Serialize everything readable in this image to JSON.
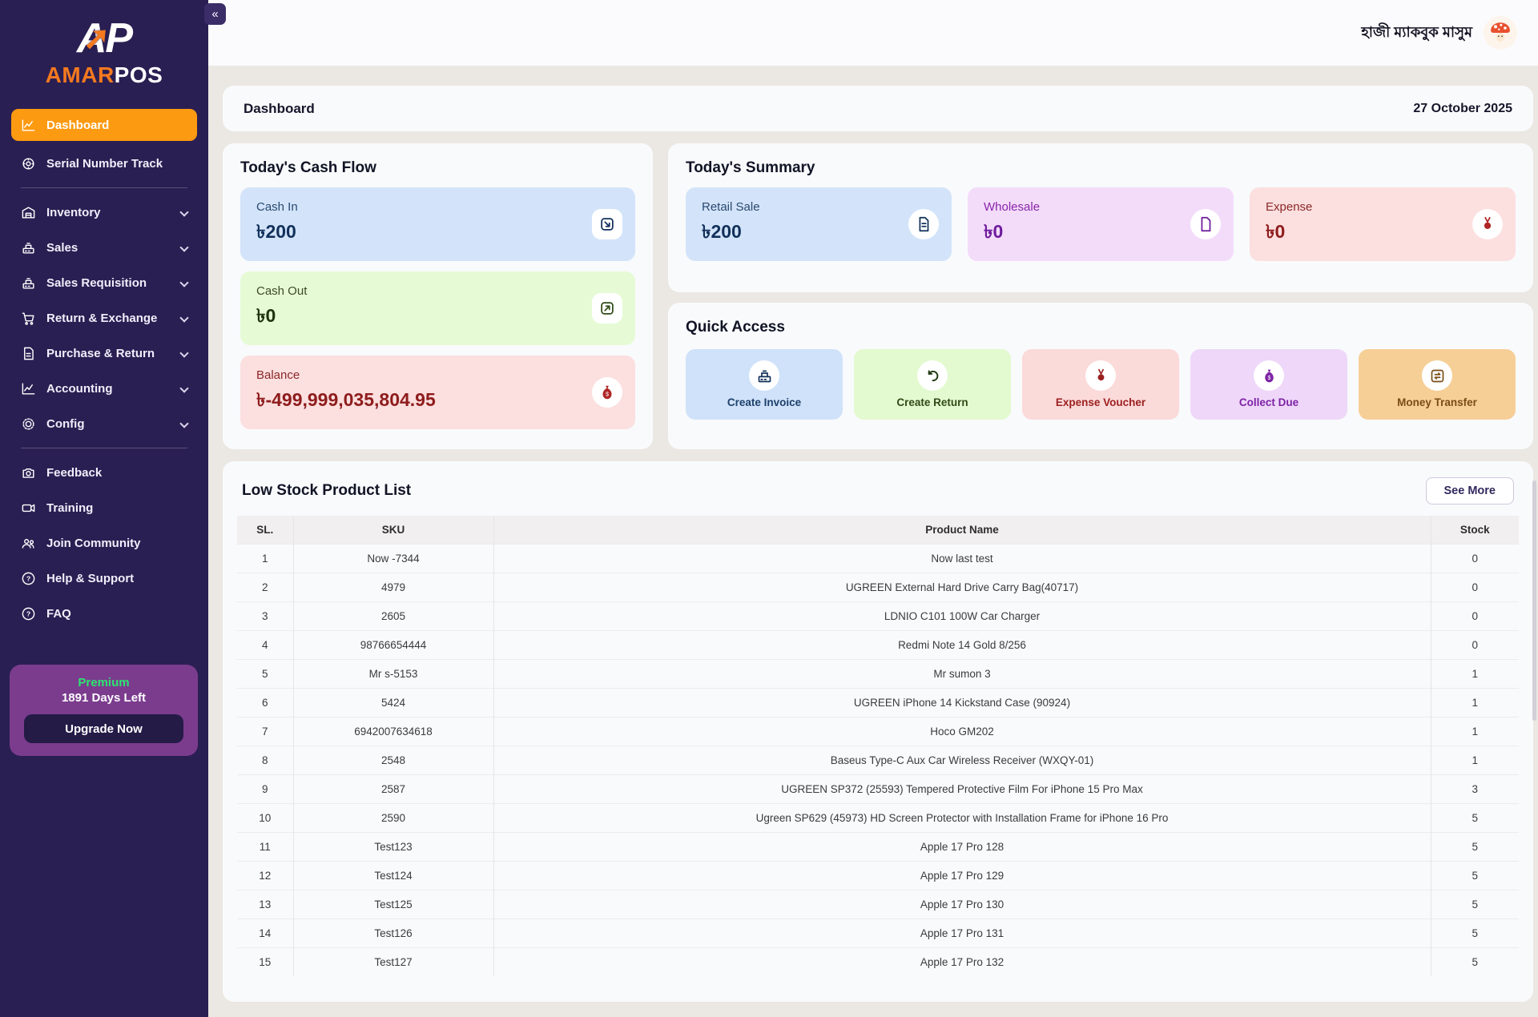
{
  "sidebar": {
    "logo": {
      "mark": "AP",
      "arrow_icon": "trend-arrow-icon",
      "brand_amar": "AMAR",
      "brand_pos": "POS"
    },
    "items": [
      {
        "label": "Dashboard",
        "icon": "chart-line-icon",
        "active": true,
        "expandable": false
      },
      {
        "label": "Serial Number Track",
        "icon": "serial-gear-icon",
        "active": false,
        "expandable": false
      },
      {
        "label": "Inventory",
        "icon": "warehouse-icon",
        "active": false,
        "expandable": true
      },
      {
        "label": "Sales",
        "icon": "cash-register-icon",
        "active": false,
        "expandable": true
      },
      {
        "label": "Sales Requisition",
        "icon": "cash-register-icon",
        "active": false,
        "expandable": true
      },
      {
        "label": "Return & Exchange",
        "icon": "cart-icon",
        "active": false,
        "expandable": true
      },
      {
        "label": "Purchase & Return",
        "icon": "file-return-icon",
        "active": false,
        "expandable": true
      },
      {
        "label": "Accounting",
        "icon": "chart-line-icon",
        "active": false,
        "expandable": true
      },
      {
        "label": "Config",
        "icon": "gear-icon",
        "active": false,
        "expandable": true
      },
      {
        "label": "Feedback",
        "icon": "camera-icon",
        "active": false,
        "expandable": false
      },
      {
        "label": "Training",
        "icon": "video-icon",
        "active": false,
        "expandable": false
      },
      {
        "label": "Join Community",
        "icon": "users-icon",
        "active": false,
        "expandable": false
      },
      {
        "label": "Help & Support",
        "icon": "question-circle-icon",
        "active": false,
        "expandable": false
      },
      {
        "label": "FAQ",
        "icon": "question-circle-icon",
        "active": false,
        "expandable": false
      }
    ],
    "premium": {
      "tier": "Premium",
      "days_left": "1891 Days Left",
      "cta": "Upgrade Now"
    }
  },
  "header": {
    "collapse_label": "«",
    "user_name": "হাজী ম্যাকবুক মাসুম",
    "avatar_icon": "mushroom-avatar"
  },
  "page": {
    "title": "Dashboard",
    "date": "27 October 2025"
  },
  "cash_flow": {
    "title": "Today's Cash Flow",
    "cards": [
      {
        "label": "Cash In",
        "value": "৳200",
        "icon": "arrow-into-box-icon",
        "color": "#d3e4fa"
      },
      {
        "label": "Cash Out",
        "value": "৳0",
        "icon": "arrow-out-of-box-icon",
        "color": "#e6fbd5"
      },
      {
        "label": "Balance",
        "value": "৳-499,999,035,804.95",
        "icon": "money-bag-icon",
        "color": "#fcdfdf"
      }
    ]
  },
  "summary": {
    "title": "Today's Summary",
    "cards": [
      {
        "label": "Retail Sale",
        "value": "৳200",
        "icon": "document-lines-icon",
        "color": "#d3e4fa"
      },
      {
        "label": "Wholesale",
        "value": "৳0",
        "icon": "document-icon",
        "color": "#f3dcfa"
      },
      {
        "label": "Expense",
        "value": "৳0",
        "icon": "medal-icon",
        "color": "#fcdfdf"
      }
    ]
  },
  "quick_access": {
    "title": "Quick Access",
    "buttons": [
      {
        "label": "Create Invoice",
        "icon": "cash-register-icon",
        "color": "#cfe2f9"
      },
      {
        "label": "Create Return",
        "icon": "return-arrow-icon",
        "color": "#e3f9cf"
      },
      {
        "label": "Expense Voucher",
        "icon": "voucher-icon",
        "color": "#fbdada"
      },
      {
        "label": "Collect Due",
        "icon": "money-bag-icon",
        "color": "#eed7f9"
      },
      {
        "label": "Money Transfer",
        "icon": "transfer-icon",
        "color": "#f6cf97"
      }
    ]
  },
  "low_stock": {
    "title": "Low Stock Product List",
    "see_more": "See More",
    "columns": [
      "SL.",
      "SKU",
      "Product Name",
      "Stock"
    ],
    "rows": [
      [
        "1",
        "Now -7344",
        "Now last test",
        "0"
      ],
      [
        "2",
        "4979",
        "UGREEN External Hard Drive Carry Bag(40717)",
        "0"
      ],
      [
        "3",
        "2605",
        "LDNIO C101 100W Car Charger",
        "0"
      ],
      [
        "4",
        "98766654444",
        "Redmi Note 14 Gold 8/256",
        "0"
      ],
      [
        "5",
        "Mr s-5153",
        "Mr sumon 3",
        "1"
      ],
      [
        "6",
        "5424",
        "UGREEN iPhone 14 Kickstand Case (90924)",
        "1"
      ],
      [
        "7",
        "6942007634618",
        "Hoco GM202",
        "1"
      ],
      [
        "8",
        "2548",
        "Baseus Type-C Aux Car Wireless Receiver (WXQY-01)",
        "1"
      ],
      [
        "9",
        "2587",
        "UGREEN SP372 (25593) Tempered Protective Film For iPhone 15 Pro Max",
        "3"
      ],
      [
        "10",
        "2590",
        "Ugreen SP629 (45973) HD Screen Protector with Installation Frame for iPhone 16 Pro",
        "5"
      ],
      [
        "11",
        "Test123",
        "Apple 17 Pro 128",
        "5"
      ],
      [
        "12",
        "Test124",
        "Apple 17 Pro 129",
        "5"
      ],
      [
        "13",
        "Test125",
        "Apple 17 Pro 130",
        "5"
      ],
      [
        "14",
        "Test126",
        "Apple 17 Pro 131",
        "5"
      ],
      [
        "15",
        "Test127",
        "Apple 17 Pro 132",
        "5"
      ]
    ]
  },
  "colors": {
    "sidebar_bg": "#2a1f52",
    "active_orange": "#fc9a12",
    "brand_orange": "#f4791f",
    "premium_purple": "#7b3c8e",
    "premium_green": "#2ee56f",
    "content_bg": "#ebe8e3",
    "tile_blue": "#d3e4fa",
    "tile_green": "#e6fbd5",
    "tile_pink": "#fcdfdf",
    "tile_purple": "#f3dcfa",
    "tile_orange": "#f6cf97",
    "balance_red": "#8e1c1c"
  }
}
